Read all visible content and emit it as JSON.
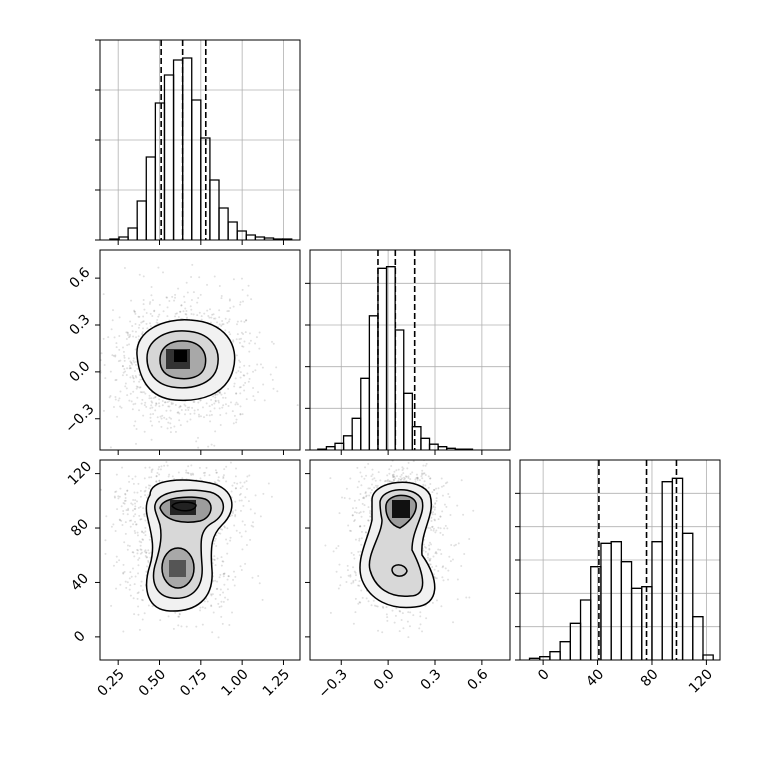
{
  "chart_data": {
    "type": "corner",
    "grid": true,
    "params": [
      {
        "lim": [
          0.14,
          1.35
        ],
        "ticks": [
          {
            "value": 0.25,
            "label": "0.25"
          },
          {
            "value": 0.5,
            "label": "0.50"
          },
          {
            "value": 0.75,
            "label": "0.75"
          },
          {
            "value": 1,
            "label": "1.00"
          },
          {
            "value": 1.25,
            "label": "1.25"
          }
        ]
      },
      {
        "lim": [
          -0.5,
          0.78
        ],
        "ticks": [
          {
            "value": -0.3,
            "label": "−0.3"
          },
          {
            "value": 0,
            "label": "0.0"
          },
          0.3,
          0.6
        ]
      },
      {
        "lim": [
          -17,
          130
        ],
        "ticks": [
          0,
          40,
          80,
          120
        ]
      }
    ],
    "histograms": [
      {
        "color": "#000000",
        "ylim": [
          0,
          200
        ],
        "yticks": [
          0,
          50,
          100,
          150,
          200
        ],
        "bins": [
          0.2,
          0.255,
          0.31,
          0.365,
          0.42,
          0.475,
          0.53,
          0.585,
          0.64,
          0.695,
          0.75,
          0.805,
          0.86,
          0.915,
          0.97,
          1.025,
          1.08,
          1.135,
          1.19,
          1.245,
          1.3
        ],
        "values": [
          1,
          3,
          12,
          39,
          83,
          137,
          165,
          180,
          182,
          140,
          102,
          60,
          32,
          18,
          9,
          5,
          3,
          2,
          1,
          1
        ],
        "quantiles": [
          0.51,
          0.64,
          0.78
        ]
      },
      {
        "color": "#000000",
        "ylim": [
          0,
          240
        ],
        "yticks": [
          0,
          50,
          100,
          150,
          200
        ],
        "bins": [
          -0.45,
          -0.395,
          -0.34,
          -0.285,
          -0.23,
          -0.175,
          -0.12,
          -0.065,
          -0.01,
          0.045,
          0.1,
          0.155,
          0.21,
          0.265,
          0.32,
          0.375,
          0.43,
          0.485,
          0.54
        ],
        "values": [
          1,
          4,
          8,
          17,
          38,
          86,
          161,
          218,
          220,
          144,
          68,
          28,
          14,
          7,
          4,
          2,
          1,
          1
        ],
        "quantiles": [
          -0.065,
          0.046,
          0.17
        ]
      },
      {
        "color": "#000000",
        "ylim": [
          0,
          120
        ],
        "yticks": [
          0,
          20,
          40,
          60,
          80,
          100
        ],
        "bins": [
          -10,
          -2.5,
          5,
          12.5,
          20,
          27.5,
          35,
          42.5,
          50,
          57.5,
          65,
          72.5,
          80,
          87.5,
          95,
          102.5,
          110,
          117.5,
          125
        ],
        "values": [
          1,
          2,
          5,
          11,
          22,
          36,
          56,
          70,
          71,
          59,
          43,
          44,
          71,
          107,
          109,
          76,
          26,
          3
        ],
        "quantiles": [
          41,
          76,
          98
        ]
      }
    ]
  }
}
